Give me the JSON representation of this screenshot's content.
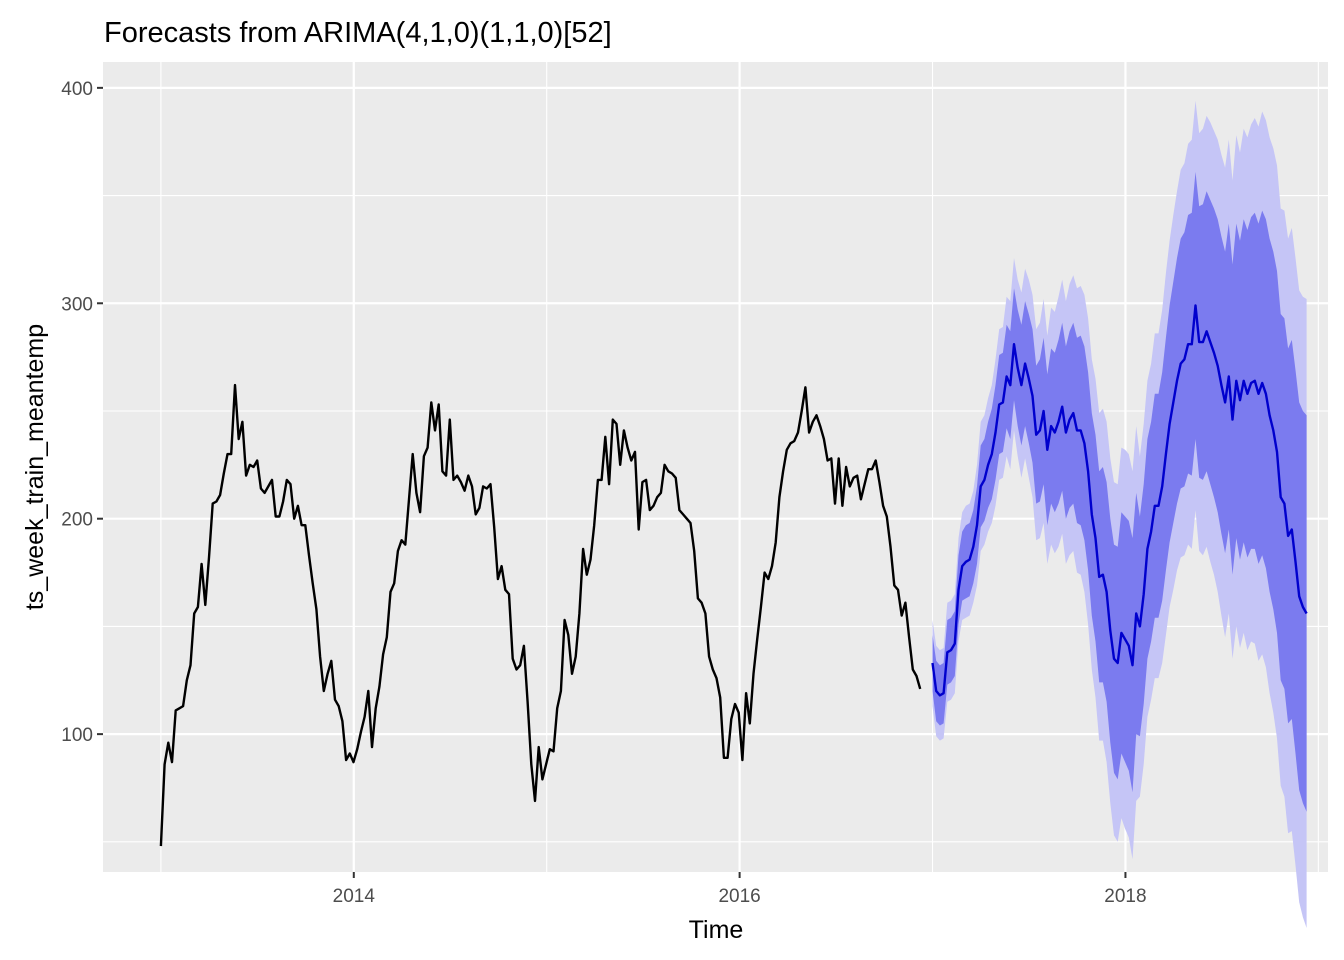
{
  "chart_data": {
    "type": "line",
    "title": "Forecasts from ARIMA(4,1,0)(1,1,0)[52]",
    "xlabel": "Time",
    "ylabel": "ts_week_train_meantemp",
    "xlim": [
      2012.7,
      2019.05
    ],
    "ylim": [
      36,
      412
    ],
    "x_ticks": [
      2014,
      2016,
      2018
    ],
    "y_ticks": [
      100,
      200,
      300,
      400
    ],
    "grid": true,
    "legend": "none",
    "colors": {
      "panel": "#ebebeb",
      "grid": "#ffffff",
      "history": "#000000",
      "forecast": "#0000cd",
      "band80": "#7b7bef",
      "band95": "#c5c5f6"
    },
    "history": {
      "x_start": 2013.0,
      "x_step": 0.0192,
      "values": [
        48,
        86,
        96,
        87,
        111,
        112,
        113,
        125,
        132,
        156,
        159,
        179,
        160,
        182,
        207,
        208,
        211,
        221,
        230,
        230,
        262,
        237,
        245,
        220,
        225,
        224,
        227,
        214,
        212,
        215,
        218,
        201,
        201,
        208,
        218,
        216,
        200,
        206,
        197,
        197,
        183,
        170,
        158,
        136,
        120,
        128,
        134,
        116,
        113,
        106,
        88,
        91,
        87,
        93,
        101,
        108,
        120,
        94,
        112,
        122,
        137,
        145,
        166,
        170,
        185,
        190,
        188,
        209,
        230,
        212,
        203,
        229,
        233,
        254,
        241,
        253,
        222,
        220,
        246,
        218,
        220,
        217,
        213,
        220,
        215,
        202,
        205,
        215,
        214,
        216,
        196,
        172,
        178,
        167,
        165,
        135,
        130,
        132,
        141,
        115,
        86,
        69,
        94,
        79,
        86,
        93,
        92,
        112,
        120,
        153,
        146,
        128,
        136,
        156,
        186,
        174,
        181,
        197,
        218,
        218,
        238,
        216,
        246,
        244,
        225,
        241,
        233,
        227,
        231,
        195,
        217,
        218,
        204,
        206,
        210,
        212,
        225,
        222,
        221,
        219,
        204,
        202,
        200,
        198,
        185,
        163,
        161,
        156,
        136,
        130,
        126,
        117,
        89,
        89,
        107,
        114,
        110,
        88,
        119,
        105,
        128,
        144,
        159,
        175,
        172,
        178,
        189,
        210,
        222,
        232,
        235,
        236,
        240,
        250,
        261,
        240,
        245,
        248,
        243,
        237,
        227,
        228,
        207,
        228,
        206,
        224,
        215,
        219,
        220,
        209,
        216,
        223,
        223,
        227,
        217,
        206,
        201,
        187,
        169,
        167,
        155,
        161,
        145,
        130,
        127,
        121
      ]
    },
    "forecast": {
      "x_start": 2017.0,
      "x_step": 0.0192,
      "mean": [
        133,
        120,
        118,
        119,
        138,
        139,
        142,
        167,
        178,
        180,
        181,
        187,
        197,
        215,
        218,
        225,
        230,
        240,
        253,
        254,
        266,
        262,
        281,
        270,
        262,
        272,
        265,
        257,
        239,
        241,
        250,
        232,
        243,
        240,
        245,
        252,
        240,
        246,
        249,
        241,
        241,
        235,
        222,
        202,
        191,
        173,
        174,
        166,
        148,
        135,
        133,
        147,
        144,
        141,
        132,
        156,
        150,
        165,
        186,
        194,
        206,
        206,
        215,
        230,
        244,
        254,
        264,
        272,
        274,
        281,
        281,
        299,
        282,
        282,
        287,
        282,
        277,
        271,
        262,
        254,
        266,
        246,
        264,
        255,
        264,
        258,
        263,
        264,
        258,
        263,
        258,
        248,
        241,
        231,
        210,
        207,
        192,
        195,
        180,
        164,
        159,
        156
      ],
      "lo80": [
        120,
        106,
        104,
        105,
        123,
        124,
        127,
        151,
        162,
        163,
        164,
        170,
        179,
        196,
        199,
        205,
        209,
        218,
        230,
        231,
        242,
        237,
        255,
        243,
        234,
        243,
        235,
        226,
        207,
        208,
        216,
        197,
        207,
        203,
        207,
        213,
        200,
        205,
        207,
        198,
        197,
        190,
        176,
        155,
        143,
        124,
        124,
        115,
        96,
        82,
        79,
        91,
        87,
        83,
        73,
        100,
        99,
        114,
        135,
        143,
        154,
        154,
        162,
        176,
        189,
        198,
        207,
        214,
        215,
        221,
        220,
        237,
        219,
        218,
        222,
        216,
        210,
        203,
        193,
        184,
        195,
        174,
        191,
        181,
        189,
        182,
        186,
        186,
        179,
        183,
        177,
        166,
        158,
        147,
        125,
        121,
        105,
        107,
        91,
        74,
        68,
        64
      ],
      "hi80": [
        146,
        134,
        132,
        133,
        153,
        154,
        157,
        183,
        194,
        197,
        198,
        204,
        215,
        234,
        237,
        245,
        251,
        262,
        276,
        277,
        290,
        287,
        307,
        297,
        290,
        301,
        295,
        288,
        271,
        274,
        284,
        267,
        279,
        277,
        283,
        291,
        280,
        287,
        291,
        284,
        285,
        280,
        268,
        249,
        239,
        222,
        224,
        217,
        200,
        188,
        187,
        203,
        201,
        199,
        191,
        212,
        201,
        216,
        237,
        245,
        258,
        258,
        268,
        284,
        299,
        310,
        321,
        330,
        333,
        341,
        342,
        361,
        345,
        346,
        352,
        348,
        344,
        339,
        331,
        324,
        337,
        318,
        337,
        329,
        339,
        334,
        340,
        342,
        337,
        343,
        339,
        330,
        324,
        315,
        295,
        293,
        279,
        283,
        269,
        254,
        250,
        248
      ],
      "lo95": [
        113,
        99,
        97,
        98,
        115,
        116,
        119,
        143,
        153,
        154,
        155,
        161,
        169,
        185,
        188,
        194,
        198,
        206,
        218,
        219,
        229,
        223,
        241,
        229,
        219,
        228,
        219,
        210,
        190,
        191,
        198,
        179,
        188,
        184,
        187,
        193,
        179,
        183,
        185,
        175,
        174,
        166,
        151,
        130,
        117,
        97,
        97,
        87,
        68,
        53,
        50,
        61,
        56,
        52,
        42,
        69,
        71,
        86,
        108,
        116,
        126,
        126,
        133,
        146,
        159,
        167,
        176,
        182,
        183,
        188,
        186,
        204,
        185,
        183,
        187,
        180,
        174,
        166,
        155,
        145,
        156,
        135,
        150,
        140,
        147,
        139,
        143,
        142,
        134,
        137,
        131,
        119,
        110,
        98,
        76,
        71,
        54,
        55,
        39,
        22,
        15,
        10
      ],
      "hi95": [
        153,
        141,
        139,
        140,
        161,
        162,
        165,
        191,
        203,
        206,
        207,
        213,
        225,
        245,
        248,
        256,
        262,
        274,
        288,
        289,
        303,
        301,
        321,
        311,
        305,
        316,
        311,
        304,
        288,
        291,
        302,
        285,
        298,
        296,
        303,
        311,
        301,
        309,
        313,
        307,
        308,
        304,
        293,
        274,
        265,
        249,
        251,
        245,
        228,
        217,
        216,
        233,
        232,
        230,
        222,
        243,
        229,
        244,
        264,
        272,
        286,
        286,
        297,
        314,
        329,
        341,
        352,
        362,
        365,
        374,
        376,
        394,
        379,
        381,
        387,
        384,
        380,
        376,
        369,
        363,
        376,
        357,
        378,
        370,
        381,
        377,
        383,
        386,
        382,
        389,
        385,
        377,
        372,
        364,
        344,
        343,
        330,
        335,
        321,
        306,
        303,
        302
      ]
    }
  }
}
